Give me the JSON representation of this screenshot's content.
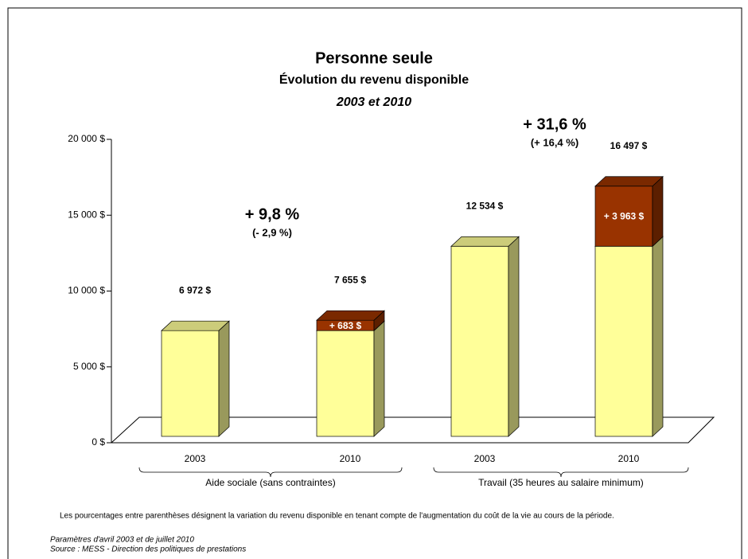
{
  "chart_data": {
    "type": "bar3d_stacked",
    "title": "Personne seule",
    "subtitle": "Évolution du revenu disponible",
    "period": "2003 et 2010",
    "categories": [
      "2003",
      "2010",
      "2003",
      "2010"
    ],
    "groups": [
      "Aide sociale (sans contraintes)",
      "Travail (35 heures au salaire minimum)"
    ],
    "series": [
      {
        "color": "#ffff99",
        "values": [
          6972,
          6972,
          12534,
          12534
        ]
      },
      {
        "color": "#993300",
        "values": [
          null,
          683,
          null,
          3963
        ],
        "value_labels": [
          null,
          "+ 683 $",
          null,
          "+ 3 963 $"
        ]
      }
    ],
    "totals": [
      6972,
      7655,
      12534,
      16497
    ],
    "total_labels": [
      "6 972 $",
      "7 655 $",
      "12 534 $",
      "16 497 $"
    ],
    "annotations": [
      {
        "text": "+ 9,8 %",
        "note": "(- 2,9 %)"
      },
      {
        "text": "+ 31,6 %",
        "note": "(+ 16,4 %)"
      }
    ],
    "ylim": [
      0,
      20000
    ],
    "yticks": [
      {
        "value": 0,
        "label": "0 $"
      },
      {
        "value": 5000,
        "label": "5 000 $"
      },
      {
        "value": 10000,
        "label": "10 000 $"
      },
      {
        "value": 15000,
        "label": "15 000 $"
      },
      {
        "value": 20000,
        "label": "20 000 $"
      }
    ],
    "footnote": "Les pourcentages entre parenthèses désignent la variation du revenu disponible en tenant compte de l'augmentation du coût de la vie au cours de la période.",
    "notes": [
      "Paramètres d'avril 2003 et de juillet 2010",
      "Source : MESS - Direction des politiques de prestations"
    ]
  }
}
